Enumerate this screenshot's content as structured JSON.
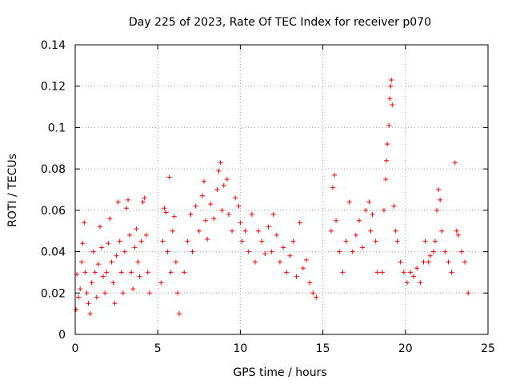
{
  "chart_data": {
    "type": "scatter",
    "title": "Day 225 of 2023, Rate Of TEC Index for receiver p070",
    "xlabel": "GPS time / hours",
    "ylabel": "ROTI / TECUs",
    "xlim": [
      0,
      25
    ],
    "ylim": [
      0,
      0.14
    ],
    "xticks": [
      0,
      5,
      10,
      15,
      20,
      25
    ],
    "yticks": [
      0,
      0.02,
      0.04,
      0.06,
      0.08,
      0.1,
      0.12,
      0.14
    ],
    "xtick_labels": [
      "0",
      "5",
      "10",
      "15",
      "20",
      "25"
    ],
    "ytick_labels": [
      "0",
      "0.02",
      "0.04",
      "0.06",
      "0.08",
      "0.1",
      "0.12",
      "0.14"
    ],
    "grid": true,
    "marker": "+",
    "color": "#ff0000",
    "series": [
      {
        "name": "ROTI",
        "points": [
          [
            0.05,
            0.012
          ],
          [
            0.1,
            0.029
          ],
          [
            0.2,
            0.018
          ],
          [
            0.3,
            0.022
          ],
          [
            0.4,
            0.035
          ],
          [
            0.45,
            0.044
          ],
          [
            0.55,
            0.054
          ],
          [
            0.6,
            0.03
          ],
          [
            0.7,
            0.02
          ],
          [
            0.8,
            0.015
          ],
          [
            0.9,
            0.01
          ],
          [
            1.0,
            0.025
          ],
          [
            1.1,
            0.04
          ],
          [
            1.2,
            0.03
          ],
          [
            1.3,
            0.018
          ],
          [
            1.4,
            0.034
          ],
          [
            1.5,
            0.052
          ],
          [
            1.6,
            0.042
          ],
          [
            1.7,
            0.028
          ],
          [
            1.8,
            0.02
          ],
          [
            1.9,
            0.03
          ],
          [
            2.0,
            0.044
          ],
          [
            2.1,
            0.056
          ],
          [
            2.2,
            0.035
          ],
          [
            2.3,
            0.025
          ],
          [
            2.4,
            0.015
          ],
          [
            2.5,
            0.038
          ],
          [
            2.6,
            0.064
          ],
          [
            2.7,
            0.045
          ],
          [
            2.8,
            0.03
          ],
          [
            2.9,
            0.02
          ],
          [
            3.0,
            0.04
          ],
          [
            3.1,
            0.061
          ],
          [
            3.2,
            0.065
          ],
          [
            3.3,
            0.048
          ],
          [
            3.4,
            0.03
          ],
          [
            3.5,
            0.022
          ],
          [
            3.6,
            0.042
          ],
          [
            3.7,
            0.051
          ],
          [
            3.8,
            0.035
          ],
          [
            3.9,
            0.028
          ],
          [
            4.0,
            0.045
          ],
          [
            4.1,
            0.064
          ],
          [
            4.2,
            0.066
          ],
          [
            4.3,
            0.048
          ],
          [
            4.4,
            0.03
          ],
          [
            4.5,
            0.02
          ],
          [
            5.2,
            0.025
          ],
          [
            5.3,
            0.045
          ],
          [
            5.4,
            0.061
          ],
          [
            5.5,
            0.059
          ],
          [
            5.6,
            0.04
          ],
          [
            5.7,
            0.076
          ],
          [
            5.8,
            0.03
          ],
          [
            5.9,
            0.05
          ],
          [
            6.0,
            0.057
          ],
          [
            6.1,
            0.035
          ],
          [
            6.2,
            0.02
          ],
          [
            6.3,
            0.01
          ],
          [
            6.6,
            0.03
          ],
          [
            6.8,
            0.045
          ],
          [
            7.0,
            0.058
          ],
          [
            7.1,
            0.04
          ],
          [
            7.3,
            0.062
          ],
          [
            7.5,
            0.05
          ],
          [
            7.7,
            0.067
          ],
          [
            7.8,
            0.074
          ],
          [
            7.9,
            0.055
          ],
          [
            8.0,
            0.046
          ],
          [
            8.2,
            0.063
          ],
          [
            8.4,
            0.056
          ],
          [
            8.6,
            0.07
          ],
          [
            8.7,
            0.079
          ],
          [
            8.8,
            0.083
          ],
          [
            8.9,
            0.06
          ],
          [
            9.0,
            0.072
          ],
          [
            9.2,
            0.075
          ],
          [
            9.3,
            0.058
          ],
          [
            9.5,
            0.05
          ],
          [
            9.7,
            0.066
          ],
          [
            9.9,
            0.062
          ],
          [
            10.0,
            0.054
          ],
          [
            10.1,
            0.045
          ],
          [
            10.3,
            0.05
          ],
          [
            10.5,
            0.04
          ],
          [
            10.7,
            0.058
          ],
          [
            10.9,
            0.035
          ],
          [
            11.1,
            0.05
          ],
          [
            11.3,
            0.045
          ],
          [
            11.5,
            0.039
          ],
          [
            11.7,
            0.052
          ],
          [
            11.9,
            0.04
          ],
          [
            12.0,
            0.058
          ],
          [
            12.2,
            0.048
          ],
          [
            12.4,
            0.035
          ],
          [
            12.6,
            0.042
          ],
          [
            12.8,
            0.03
          ],
          [
            13.0,
            0.038
          ],
          [
            13.2,
            0.045
          ],
          [
            13.4,
            0.028
          ],
          [
            13.6,
            0.054
          ],
          [
            13.8,
            0.032
          ],
          [
            14.0,
            0.036
          ],
          [
            14.2,
            0.025
          ],
          [
            14.4,
            0.02
          ],
          [
            14.6,
            0.018
          ],
          [
            15.5,
            0.05
          ],
          [
            15.6,
            0.071
          ],
          [
            15.7,
            0.077
          ],
          [
            15.8,
            0.055
          ],
          [
            16.0,
            0.04
          ],
          [
            16.2,
            0.03
          ],
          [
            16.4,
            0.045
          ],
          [
            16.6,
            0.064
          ],
          [
            16.8,
            0.04
          ],
          [
            17.0,
            0.048
          ],
          [
            17.2,
            0.055
          ],
          [
            17.4,
            0.042
          ],
          [
            17.6,
            0.06
          ],
          [
            17.8,
            0.064
          ],
          [
            17.9,
            0.05
          ],
          [
            18.0,
            0.058
          ],
          [
            18.2,
            0.045
          ],
          [
            18.3,
            0.03
          ],
          [
            18.6,
            0.03
          ],
          [
            18.7,
            0.06
          ],
          [
            18.8,
            0.075
          ],
          [
            18.85,
            0.084
          ],
          [
            18.9,
            0.092
          ],
          [
            19.0,
            0.101
          ],
          [
            19.05,
            0.114
          ],
          [
            19.1,
            0.12
          ],
          [
            19.15,
            0.123
          ],
          [
            19.2,
            0.111
          ],
          [
            19.3,
            0.062
          ],
          [
            19.4,
            0.05
          ],
          [
            19.5,
            0.045
          ],
          [
            19.7,
            0.035
          ],
          [
            19.9,
            0.03
          ],
          [
            20.1,
            0.025
          ],
          [
            20.3,
            0.03
          ],
          [
            20.5,
            0.028
          ],
          [
            20.7,
            0.032
          ],
          [
            20.9,
            0.025
          ],
          [
            21.1,
            0.035
          ],
          [
            21.2,
            0.045
          ],
          [
            21.4,
            0.035
          ],
          [
            21.5,
            0.038
          ],
          [
            21.7,
            0.04
          ],
          [
            21.8,
            0.045
          ],
          [
            21.9,
            0.06
          ],
          [
            22.0,
            0.07
          ],
          [
            22.1,
            0.065
          ],
          [
            22.2,
            0.05
          ],
          [
            22.4,
            0.04
          ],
          [
            22.6,
            0.035
          ],
          [
            22.8,
            0.03
          ],
          [
            23.0,
            0.083
          ],
          [
            23.1,
            0.05
          ],
          [
            23.2,
            0.048
          ],
          [
            23.4,
            0.04
          ],
          [
            23.6,
            0.035
          ],
          [
            23.8,
            0.02
          ]
        ]
      }
    ]
  }
}
